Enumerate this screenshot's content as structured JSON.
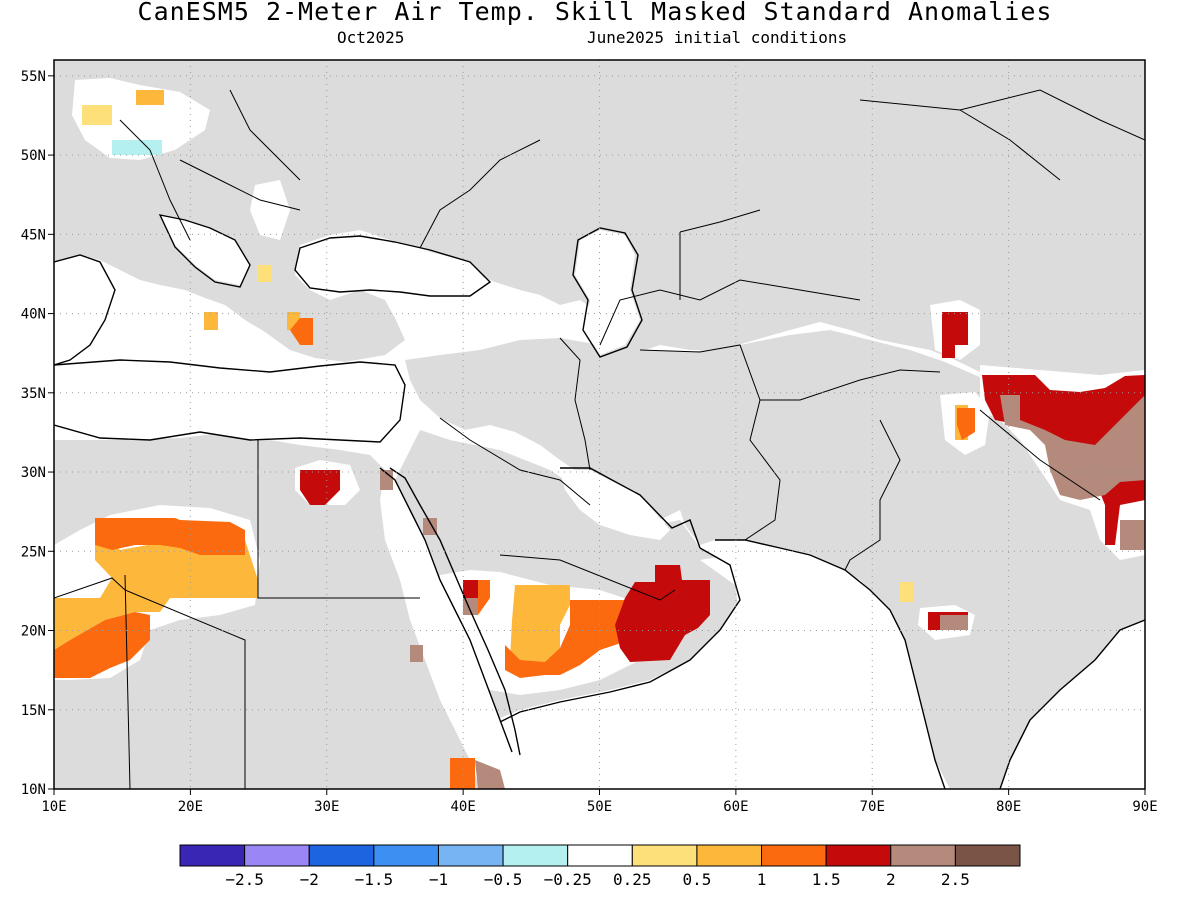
{
  "title": "CanESM5 2-Meter Air Temp. Skill Masked Standard Anomalies",
  "subtitle_left": "Oct2025",
  "subtitle_right": "June2025 initial conditions",
  "colors": {
    "land": "#dcdcdc",
    "ocean": "#ffffff",
    "border": "#000000",
    "grid": "#9a9a9a"
  },
  "map": {
    "lon_range": [
      10,
      90
    ],
    "lat_range": [
      10,
      56
    ],
    "lon_ticks": [
      {
        "v": 10,
        "label": "10E"
      },
      {
        "v": 20,
        "label": "20E"
      },
      {
        "v": 30,
        "label": "30E"
      },
      {
        "v": 40,
        "label": "40E"
      },
      {
        "v": 50,
        "label": "50E"
      },
      {
        "v": 60,
        "label": "60E"
      },
      {
        "v": 70,
        "label": "70E"
      },
      {
        "v": 80,
        "label": "80E"
      },
      {
        "v": 90,
        "label": "90E"
      }
    ],
    "lat_ticks": [
      {
        "v": 10,
        "label": "10N"
      },
      {
        "v": 15,
        "label": "15N"
      },
      {
        "v": 20,
        "label": "20N"
      },
      {
        "v": 25,
        "label": "25N"
      },
      {
        "v": 30,
        "label": "30N"
      },
      {
        "v": 35,
        "label": "35N"
      },
      {
        "v": 40,
        "label": "40N"
      },
      {
        "v": 45,
        "label": "45N"
      },
      {
        "v": 50,
        "label": "50N"
      },
      {
        "v": 55,
        "label": "55N"
      }
    ]
  },
  "colorbar": {
    "colors": [
      "#3a26b5",
      "#9b86f5",
      "#1c64e0",
      "#3d8ff2",
      "#77b4f3",
      "#b4f0f0",
      "#ffffff",
      "#fde07a",
      "#fdb83c",
      "#fb6a0f",
      "#c40a0a",
      "#b48a7c",
      "#7a5446"
    ],
    "labels": [
      "-2.5",
      "-2",
      "-1.5",
      "-1",
      "-0.5",
      "-0.25",
      "0.25",
      "0.5",
      "1",
      "1.5",
      "2",
      "2.5"
    ]
  }
}
